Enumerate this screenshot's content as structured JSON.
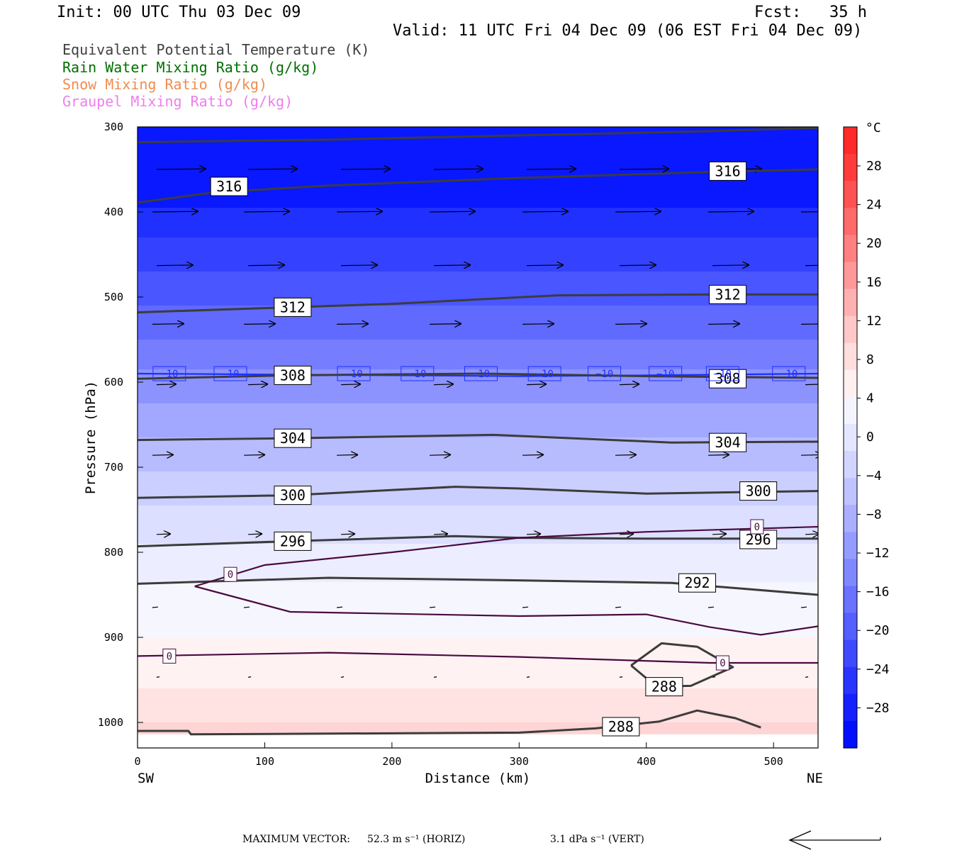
{
  "header": {
    "init": "Init: 00 UTC Thu 03 Dec 09",
    "fcst": "Fcst:   35 h",
    "valid": "Valid: 11 UTC Fri 04 Dec 09 (06 EST Fri 04 Dec 09)"
  },
  "legend": [
    {
      "text": "Equivalent Potential Temperature (K)",
      "color": "#404040"
    },
    {
      "text": "Rain Water Mixing Ratio (g/kg)",
      "color": "#007000"
    },
    {
      "text": "Snow Mixing Ratio (g/kg)",
      "color": "#f08c50"
    },
    {
      "text": "Graupel Mixing Ratio (g/kg)",
      "color": "#ee7eee"
    }
  ],
  "footer": {
    "max_vector_label": "MAXIMUM VECTOR:",
    "horiz": "52.3 m s⁻¹ (HORIZ)",
    "vert": "3.1 dPa s⁻¹ (VERT)"
  },
  "chart_data": {
    "type": "contour",
    "xlabel": "Distance (km)",
    "ylabel": "Pressure (hPa)",
    "x_end_labels": {
      "left": "SW",
      "right": "NE"
    },
    "xlim": [
      0,
      535
    ],
    "ylim": [
      1030,
      300
    ],
    "x_ticks": [
      0,
      100,
      200,
      300,
      400,
      500
    ],
    "y_ticks": [
      300,
      400,
      500,
      600,
      700,
      800,
      900,
      1000
    ],
    "colorbar": {
      "unit": "°C",
      "ticks": [
        "28",
        "24",
        "20",
        "16",
        "12",
        "8",
        "4",
        "0",
        "−4",
        "−8",
        "−12",
        "−16",
        "−20",
        "−24",
        "−28"
      ],
      "colors_top_to_bottom": [
        "#ff2a2a",
        "#ff3c3c",
        "#ff5252",
        "#ff6a6a",
        "#ff8080",
        "#ff9898",
        "#ffb0b0",
        "#ffc8c8",
        "#ffdede",
        "#fff0f0",
        "#f4f4ff",
        "#e4e6ff",
        "#d2d6ff",
        "#bfc3ff",
        "#aab0ff",
        "#959cff",
        "#8088ff",
        "#6a72ff",
        "#555eff",
        "#3f49ff",
        "#2a34ff",
        "#1520ff",
        "#0010ff"
      ]
    },
    "theta_e_contours": [
      {
        "label": "316",
        "points": [
          [
            0,
            389
          ],
          [
            60,
            377
          ],
          [
            150,
            369
          ],
          [
            300,
            360
          ],
          [
            450,
            353
          ],
          [
            535,
            350
          ]
        ]
      },
      {
        "label": "316",
        "points": [
          [
            0,
            318
          ],
          [
            150,
            315
          ],
          [
            300,
            310
          ],
          [
            450,
            305
          ],
          [
            535,
            301
          ]
        ]
      },
      {
        "label": "312",
        "points": [
          [
            0,
            518
          ],
          [
            120,
            512
          ],
          [
            200,
            508
          ],
          [
            330,
            498
          ],
          [
            450,
            497
          ],
          [
            535,
            497
          ]
        ]
      },
      {
        "label": "308",
        "points": [
          [
            0,
            596
          ],
          [
            120,
            592
          ],
          [
            270,
            590
          ],
          [
            400,
            593
          ],
          [
            535,
            595
          ]
        ]
      },
      {
        "label": "304",
        "points": [
          [
            0,
            668
          ],
          [
            120,
            666
          ],
          [
            280,
            662
          ],
          [
            420,
            671
          ],
          [
            535,
            670
          ]
        ]
      },
      {
        "label": "300",
        "points": [
          [
            0,
            736
          ],
          [
            120,
            733
          ],
          [
            250,
            723
          ],
          [
            300,
            725
          ],
          [
            400,
            731
          ],
          [
            535,
            728
          ]
        ]
      },
      {
        "label": "296",
        "points": [
          [
            0,
            793
          ],
          [
            120,
            787
          ],
          [
            250,
            781
          ],
          [
            300,
            783
          ],
          [
            400,
            784
          ],
          [
            535,
            784
          ]
        ]
      },
      {
        "label": "292",
        "points": [
          [
            0,
            837
          ],
          [
            150,
            830
          ],
          [
            300,
            833
          ],
          [
            420,
            836
          ],
          [
            535,
            850
          ]
        ]
      },
      {
        "label": "288",
        "points": [
          [
            0,
            1010
          ],
          [
            40,
            1010
          ],
          [
            42,
            1014
          ],
          [
            300,
            1012
          ],
          [
            360,
            1007
          ],
          [
            410,
            999
          ],
          [
            440,
            986
          ],
          [
            470,
            995
          ],
          [
            490,
            1006
          ]
        ]
      },
      {
        "label": "288",
        "points": [
          [
            388,
            933
          ],
          [
            412,
            907
          ],
          [
            440,
            911
          ],
          [
            468,
            935
          ],
          [
            435,
            957
          ],
          [
            408,
            958
          ],
          [
            388,
            933
          ]
        ]
      }
    ],
    "zero_isotherm": [
      {
        "label": "0",
        "points": [
          [
            45,
            840
          ],
          [
            100,
            815
          ],
          [
            200,
            800
          ],
          [
            300,
            783
          ],
          [
            400,
            776
          ],
          [
            535,
            770
          ]
        ]
      },
      {
        "label": "0",
        "points": [
          [
            45,
            840
          ],
          [
            120,
            870
          ],
          [
            300,
            875
          ],
          [
            400,
            873
          ],
          [
            450,
            888
          ],
          [
            490,
            897
          ],
          [
            535,
            887
          ]
        ]
      },
      {
        "label": "0",
        "points": [
          [
            0,
            922
          ],
          [
            150,
            918
          ],
          [
            300,
            923
          ],
          [
            450,
            930
          ],
          [
            535,
            930
          ]
        ]
      }
    ],
    "minus10_isotherm": {
      "label": "−10",
      "points": [
        [
          0,
          590
        ],
        [
          200,
          592
        ],
        [
          300,
          593
        ],
        [
          400,
          592
        ],
        [
          535,
          590
        ]
      ],
      "label_x": [
        25,
        73,
        170,
        220,
        270,
        320,
        367,
        415,
        460,
        512
      ]
    },
    "wind_rows": [
      {
        "p": 350,
        "len": 70
      },
      {
        "p": 400,
        "len": 65
      },
      {
        "p": 463,
        "len": 52
      },
      {
        "p": 532,
        "len": 45
      },
      {
        "p": 603,
        "len": 28
      },
      {
        "p": 686,
        "len": 30
      },
      {
        "p": 779,
        "len": 20
      },
      {
        "p": 865,
        "len": 8
      },
      {
        "p": 947,
        "len": 4
      }
    ],
    "wind_x": [
      15,
      87,
      160,
      233,
      306,
      379,
      452,
      525
    ]
  }
}
